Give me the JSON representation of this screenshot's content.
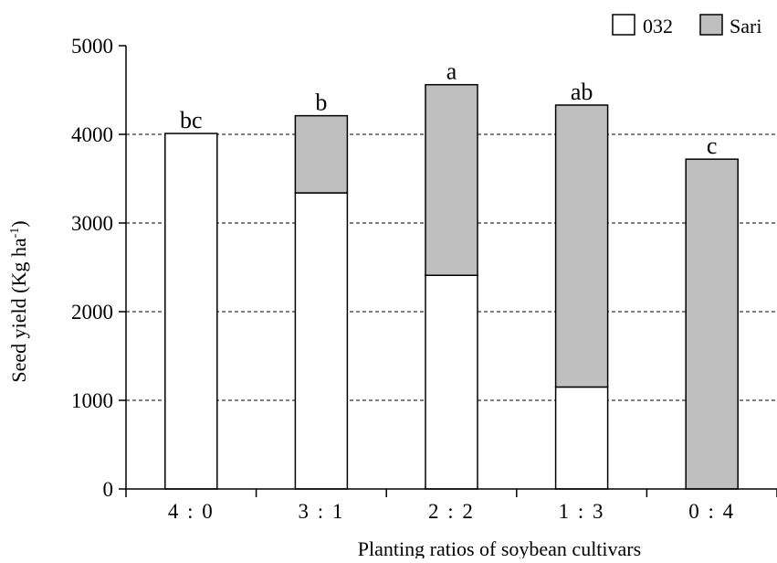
{
  "chart_data": {
    "type": "bar",
    "stacked": true,
    "categories": [
      "4 : 0",
      "3 : 1",
      "2 : 2",
      "1 : 3",
      "0 : 4"
    ],
    "series": [
      {
        "name": "032",
        "color": "#ffffff",
        "values": [
          4010,
          3340,
          2410,
          1150,
          0
        ]
      },
      {
        "name": "Sari",
        "color": "#bfbfbf",
        "values": [
          0,
          870,
          2150,
          3180,
          3720
        ]
      }
    ],
    "significance_labels": [
      "bc",
      "b",
      "a",
      "ab",
      "c"
    ],
    "title": "",
    "xlabel": "Planting ratios of soybean cultivars",
    "ylabel_main": "Seed yield (Kg ha",
    "ylabel_superscript": "-1",
    "ylabel_close": ")",
    "ylim": [
      0,
      5000
    ],
    "yticks": [
      0,
      1000,
      2000,
      3000,
      4000,
      5000
    ],
    "gridlines": [
      1000,
      2000,
      3000,
      4000
    ],
    "grid": "dashed-horizontal",
    "legend_position": "top-right"
  }
}
